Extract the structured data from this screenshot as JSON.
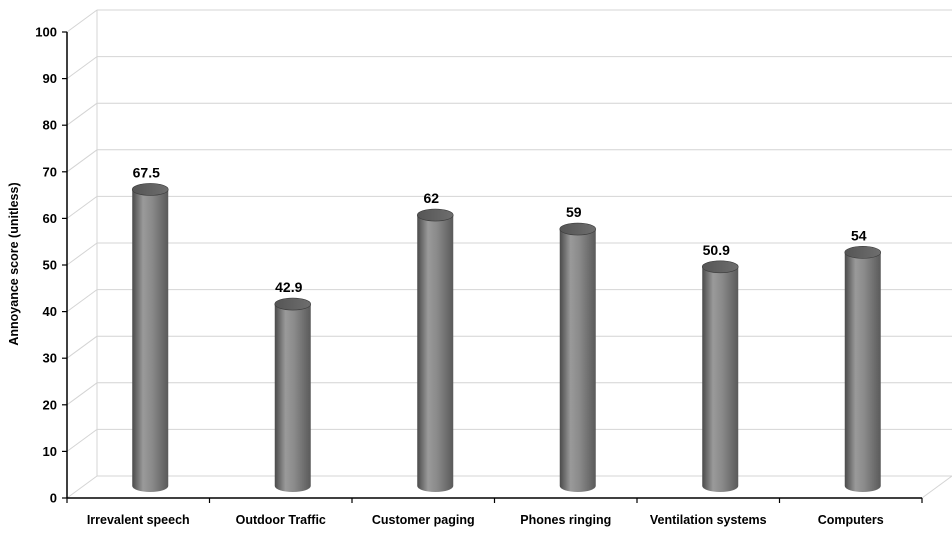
{
  "chart_data": {
    "type": "bar",
    "style": "3d-cylinder",
    "categories": [
      "Irrevalent speech",
      "Outdoor Traffic",
      "Customer paging",
      "Phones ringing",
      "Ventilation systems",
      "Computers"
    ],
    "values": [
      67.5,
      42.9,
      62,
      59,
      50.9,
      54
    ],
    "data_labels": [
      "67.5",
      "42.9",
      "62",
      "59",
      "50.9",
      "54"
    ],
    "title": "",
    "xlabel": "",
    "ylabel": "Annoyance score  (unitless)",
    "ylim": [
      0,
      100
    ],
    "yticks": [
      0,
      10,
      20,
      30,
      40,
      50,
      60,
      70,
      80,
      90,
      100
    ],
    "ytick_labels": [
      "0",
      "10",
      "20",
      "30",
      "40",
      "50",
      "60",
      "70",
      "80",
      "90",
      "100"
    ],
    "grid": true,
    "legend": "none",
    "colors": {
      "bar_fill": "#7f7f7f",
      "bar_dark": "#474747",
      "bar_light": "#a8a8a8",
      "grid": "#d4d4d4",
      "axis": "#000000"
    }
  }
}
